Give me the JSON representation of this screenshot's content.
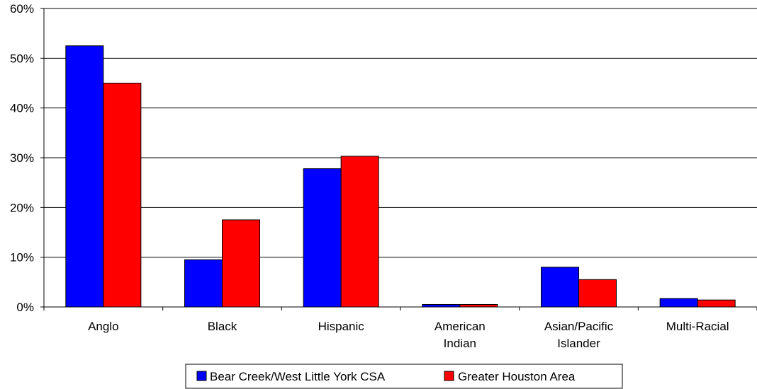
{
  "chart_data": {
    "type": "bar",
    "title": "",
    "xlabel": "",
    "ylabel": "",
    "categories": [
      [
        "Anglo"
      ],
      [
        "Black"
      ],
      [
        "Hispanic"
      ],
      [
        "American",
        "Indian"
      ],
      [
        "Asian/Pacific",
        "Islander"
      ],
      [
        "Multi-Racial"
      ]
    ],
    "series": [
      {
        "name": "Bear Creek/West Little York CSA",
        "color": "#0000ff",
        "values": [
          52.5,
          9.5,
          27.8,
          0.5,
          8.0,
          1.7
        ]
      },
      {
        "name": "Greater Houston Area",
        "color": "#ff0000",
        "values": [
          45.0,
          17.5,
          30.3,
          0.5,
          5.5,
          1.4
        ]
      }
    ],
    "ylim": [
      0,
      60
    ],
    "yticks": [
      0,
      10,
      20,
      30,
      40,
      50,
      60
    ],
    "ytick_labels": [
      "0%",
      "10%",
      "20%",
      "30%",
      "40%",
      "50%",
      "60%"
    ],
    "grid": true,
    "legend_position": "bottom"
  }
}
